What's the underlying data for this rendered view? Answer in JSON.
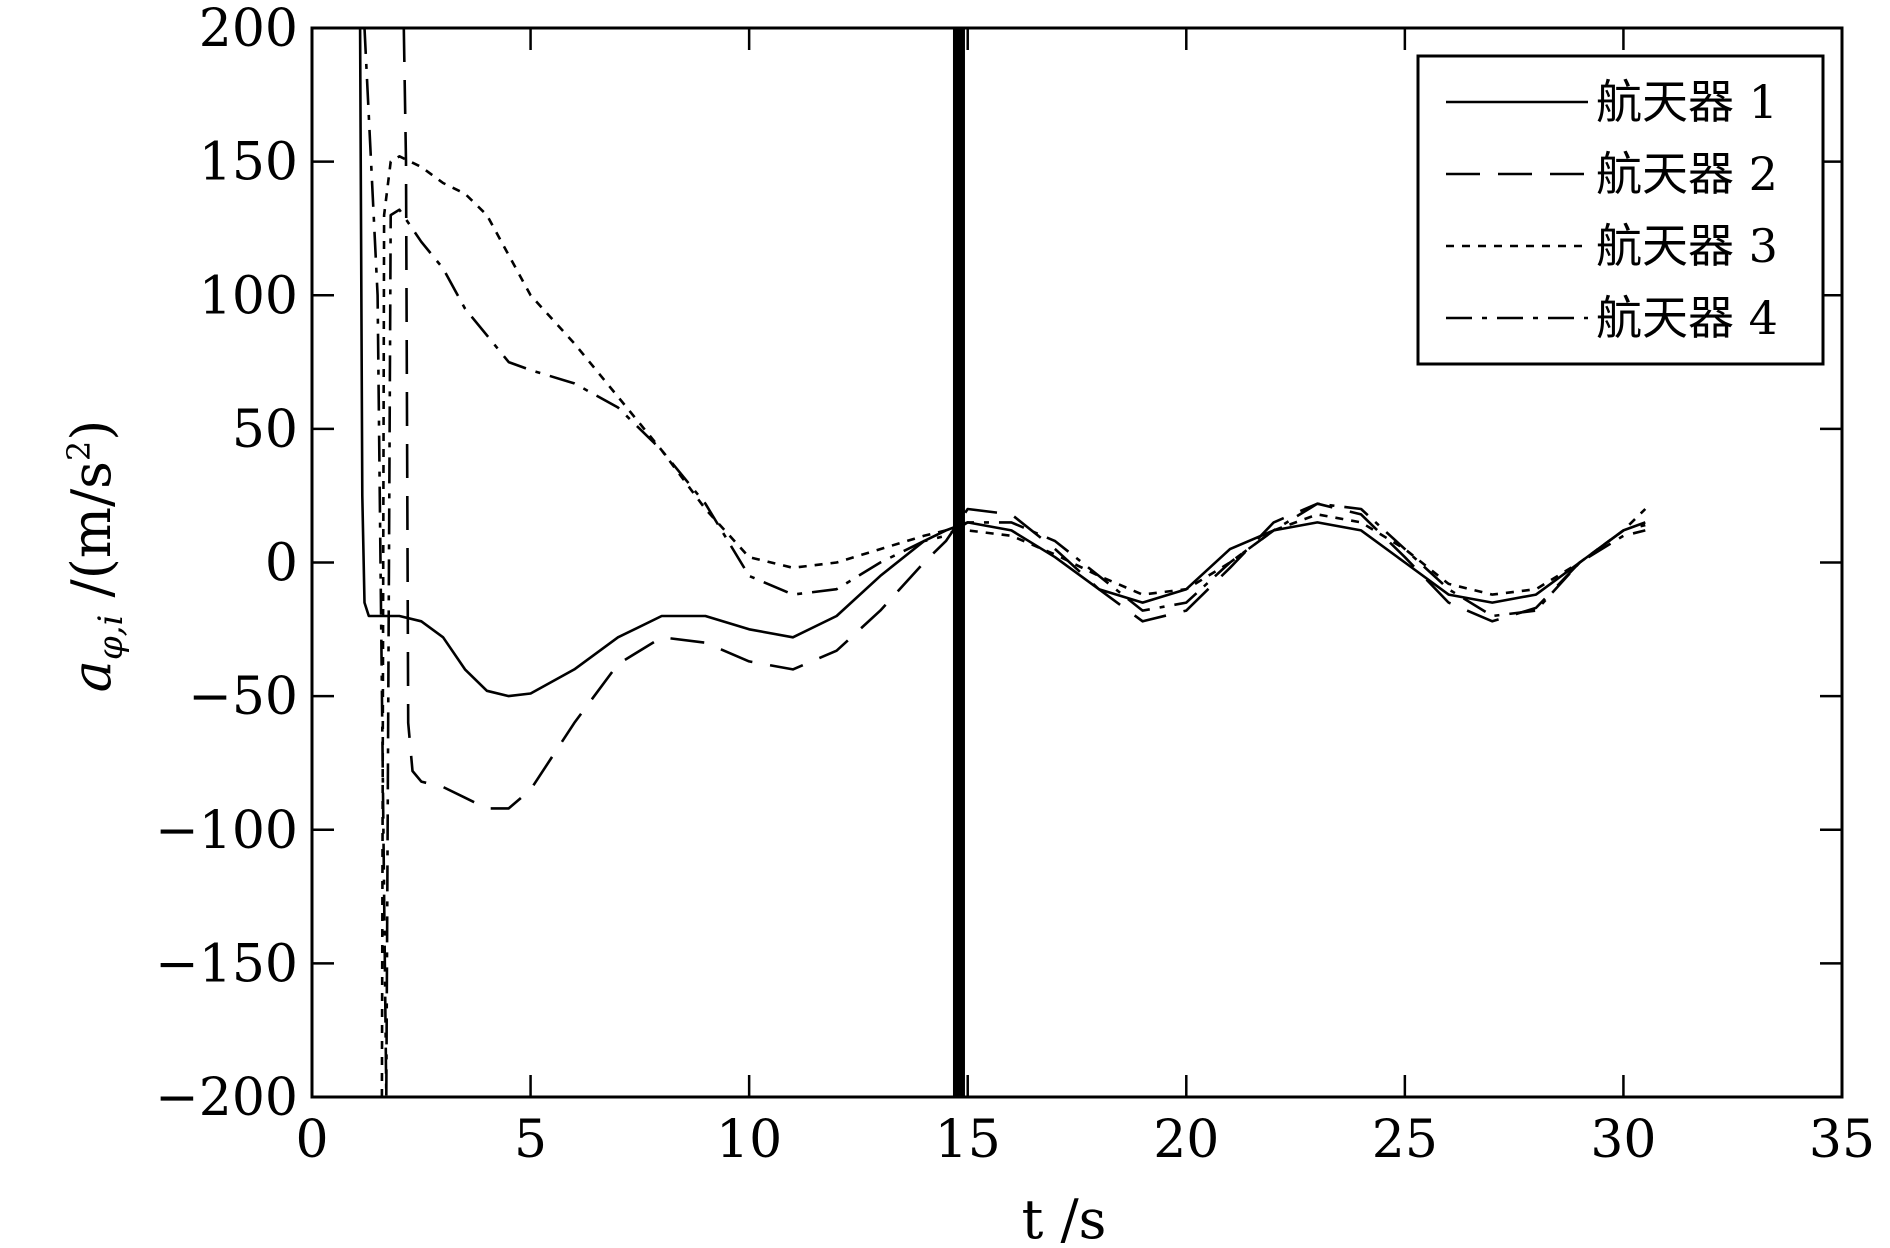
{
  "chart_data": {
    "type": "line",
    "xlabel": "t /s",
    "ylabel": "a_{φ,i} /(m/s²)",
    "ylabel_parts": {
      "symbol": "a",
      "subscript": "φ,i",
      "unit_prefix": " /(m/s",
      "unit_sup": "2",
      "unit_suffix": ")"
    },
    "xlim": [
      0,
      35
    ],
    "ylim": [
      -200,
      200
    ],
    "xticks": [
      0,
      5,
      10,
      15,
      20,
      25,
      30,
      35
    ],
    "yticks": [
      -200,
      -150,
      -100,
      -50,
      0,
      50,
      100,
      150,
      200
    ],
    "xtick_labels": [
      "0",
      "5",
      "10",
      "15",
      "20",
      "25",
      "30",
      "35"
    ],
    "ytick_labels": [
      "−200",
      "−150",
      "−100",
      "−50",
      "0",
      "50",
      "100",
      "150",
      "200"
    ],
    "grid": false,
    "legend_position": "top-right",
    "series": [
      {
        "name": "航天器 1",
        "style": "solid",
        "x": [
          1.1,
          1.15,
          1.2,
          1.3,
          1.6,
          2.0,
          2.5,
          3.0,
          3.5,
          4.0,
          4.5,
          5.0,
          6.0,
          7.0,
          8.0,
          9.0,
          10.0,
          11.0,
          12.0,
          13.0,
          14.0,
          14.5,
          15.0,
          16.0,
          17.0,
          18.0,
          19.0,
          20.0,
          21.0,
          22.0,
          23.0,
          24.0,
          25.0,
          26.0,
          27.0,
          28.0,
          29.0,
          30.0,
          30.5
        ],
        "y": [
          200,
          25,
          -15,
          -20,
          -20,
          -20,
          -22,
          -28,
          -40,
          -48,
          -50,
          -49,
          -40,
          -28,
          -20,
          -20,
          -25,
          -28,
          -20,
          -5,
          8,
          12,
          15,
          12,
          2,
          -10,
          -15,
          -10,
          5,
          12,
          15,
          12,
          0,
          -12,
          -15,
          -12,
          0,
          12,
          15
        ]
      },
      {
        "name": "航天器 2",
        "style": "dashed",
        "x": [
          2.1,
          2.15,
          2.2,
          2.3,
          2.5,
          3.0,
          3.5,
          4.0,
          4.5,
          5.0,
          6.0,
          7.0,
          8.0,
          9.0,
          10.0,
          11.0,
          12.0,
          13.0,
          14.0,
          14.5,
          15.0,
          16.0,
          17.0,
          18.0,
          19.0,
          20.0,
          21.0,
          22.0,
          23.0,
          24.0,
          25.0,
          26.0,
          27.0,
          28.0,
          29.0,
          30.0,
          30.5
        ],
        "y": [
          200,
          150,
          -60,
          -78,
          -82,
          -84,
          -88,
          -92,
          -92,
          -85,
          -60,
          -38,
          -28,
          -30,
          -37,
          -40,
          -33,
          -18,
          0,
          8,
          20,
          18,
          5,
          -10,
          -22,
          -18,
          -2,
          15,
          22,
          18,
          2,
          -15,
          -22,
          -17,
          0,
          12,
          14
        ]
      },
      {
        "name": "航天器 3",
        "style": "dotted",
        "x": [
          1.6,
          1.65,
          1.8,
          2.0,
          2.5,
          3.0,
          3.5,
          4.0,
          5.0,
          6.0,
          7.0,
          8.0,
          9.0,
          10.0,
          11.0,
          12.0,
          13.0,
          14.0,
          14.5,
          15.0,
          16.0,
          17.0,
          18.0,
          19.0,
          20.0,
          21.0,
          22.0,
          23.0,
          24.0,
          25.0,
          26.0,
          27.0,
          28.0,
          29.0,
          30.0,
          30.5
        ],
        "y": [
          -200,
          130,
          150,
          152,
          148,
          142,
          138,
          130,
          100,
          82,
          62,
          42,
          20,
          2,
          -2,
          0,
          5,
          10,
          12,
          12,
          10,
          3,
          -5,
          -12,
          -10,
          0,
          12,
          18,
          15,
          5,
          -8,
          -12,
          -10,
          0,
          12,
          20
        ]
      },
      {
        "name": "航天器 4",
        "style": "dashdot",
        "x": [
          1.2,
          1.5,
          1.7,
          1.8,
          2.0,
          2.5,
          3.0,
          3.5,
          4.0,
          4.5,
          5.0,
          6.0,
          7.0,
          8.0,
          9.0,
          10.0,
          11.0,
          12.0,
          13.0,
          14.0,
          14.5,
          15.0,
          16.0,
          17.0,
          18.0,
          19.0,
          20.0,
          21.0,
          22.0,
          23.0,
          24.0,
          25.0,
          26.0,
          27.0,
          28.0,
          29.0,
          30.0,
          30.5
        ],
        "y": [
          200,
          100,
          -200,
          130,
          132,
          120,
          110,
          95,
          85,
          75,
          72,
          67,
          58,
          42,
          22,
          -5,
          -12,
          -10,
          0,
          8,
          10,
          15,
          15,
          8,
          -5,
          -18,
          -15,
          0,
          12,
          22,
          20,
          5,
          -10,
          -20,
          -18,
          0,
          10,
          12
        ]
      }
    ]
  }
}
